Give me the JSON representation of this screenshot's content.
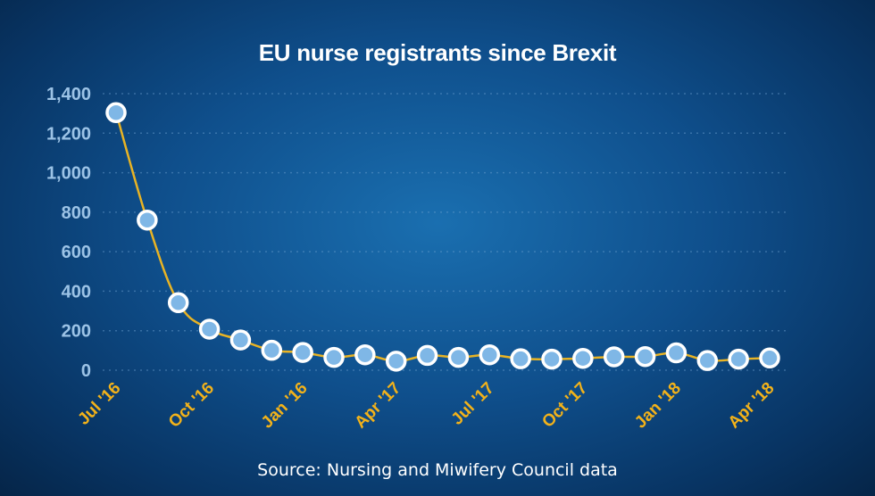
{
  "chart_data": {
    "type": "line",
    "title": "EU nurse registrants since Brexit",
    "source": "Source: Nursing and Miwifery Council data",
    "xlabel": "",
    "ylabel": "",
    "ylim": [
      0,
      1400
    ],
    "yticks": [
      "0",
      "200",
      "400",
      "600",
      "800",
      "1,000",
      "1,200",
      "1,400"
    ],
    "ytick_values": [
      0,
      200,
      400,
      600,
      800,
      1000,
      1200,
      1400
    ],
    "grid": true,
    "xtick_labels": [
      {
        "index": 0,
        "label": "Jul '16"
      },
      {
        "index": 3,
        "label": "Oct '16"
      },
      {
        "index": 6,
        "label": "Jan '16"
      },
      {
        "index": 9,
        "label": "Apr '17"
      },
      {
        "index": 12,
        "label": "Jul '17"
      },
      {
        "index": 15,
        "label": "Oct '17"
      },
      {
        "index": 18,
        "label": "Jan '18"
      },
      {
        "index": 21,
        "label": "Apr '18"
      }
    ],
    "series": [
      {
        "values": [
          1304,
          760,
          342,
          208,
          153,
          101,
          90,
          65,
          78,
          46,
          75,
          65,
          78,
          58,
          56,
          60,
          68,
          69,
          88,
          49,
          56,
          62
        ]
      }
    ],
    "colors": {
      "line": "#e8b324",
      "marker_fill": "#7fb7e6",
      "marker_stroke": "#ffffff",
      "ytick": "#9cc3e6",
      "xtick": "#f2b21a"
    }
  }
}
